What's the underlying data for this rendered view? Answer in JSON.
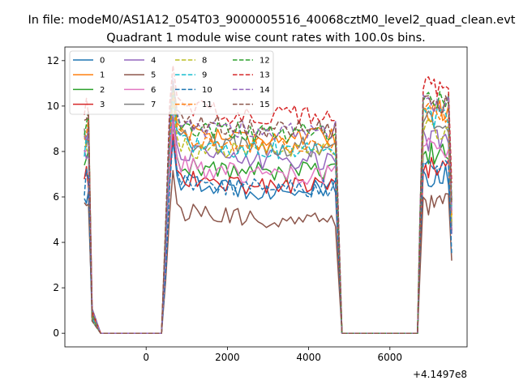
{
  "chart_data": {
    "type": "line",
    "suptitle": "In file: modeM0/AS1A12_054T03_9000005516_40068cztM0_level2_quad_clean.evt",
    "title": "Quadrant 1 module wise count rates with 100.0s bins.",
    "xlabel": "",
    "ylabel": "",
    "x_offset_label": "+4.1497e8",
    "xlim": [
      -2000,
      7900
    ],
    "ylim": [
      -0.6,
      12.6
    ],
    "xticks": [
      0,
      2000,
      4000,
      6000
    ],
    "yticks": [
      0,
      2,
      4,
      6,
      8,
      10,
      12
    ],
    "grid": false,
    "legend": {
      "placement": "upper-left",
      "columns": 4
    },
    "segments": [
      {
        "start": -1520,
        "end": -1120,
        "high_until": -1380
      },
      {
        "start": 380,
        "end": 4820,
        "high_until": 4720
      },
      {
        "start": 6680,
        "end": 7520,
        "high_until": 7520
      }
    ],
    "series": [
      {
        "name": "0",
        "color": "#1f77b4",
        "dash": false,
        "level": 6.3,
        "start_level": 6.0,
        "seg3_level": 7.0
      },
      {
        "name": "1",
        "color": "#ff7f0e",
        "dash": false,
        "level": 8.6,
        "start_level": 8.2,
        "seg3_level": 9.9
      },
      {
        "name": "2",
        "color": "#2ca02c",
        "dash": false,
        "level": 7.1,
        "start_level": 7.3,
        "seg3_level": 8.0
      },
      {
        "name": "3",
        "color": "#d62728",
        "dash": false,
        "level": 6.5,
        "start_level": 6.6,
        "seg3_level": 7.4
      },
      {
        "name": "4",
        "color": "#9467bd",
        "dash": false,
        "level": 7.6,
        "start_level": 7.8,
        "seg3_level": 8.6
      },
      {
        "name": "5",
        "color": "#8c564b",
        "dash": false,
        "level": 5.0,
        "start_level": 5.4,
        "seg3_level": 5.8
      },
      {
        "name": "6",
        "color": "#e377c2",
        "dash": false,
        "level": 7.0,
        "start_level": 7.5,
        "seg3_level": 8.2
      },
      {
        "name": "7",
        "color": "#7f7f7f",
        "dash": false,
        "level": 8.2,
        "start_level": 8.5,
        "seg3_level": 9.4
      },
      {
        "name": "8",
        "color": "#bcbd22",
        "dash": true,
        "level": 7.9,
        "start_level": 8.1,
        "seg3_level": 9.1
      },
      {
        "name": "9",
        "color": "#17becf",
        "dash": true,
        "level": 8.1,
        "start_level": 8.3,
        "seg3_level": 9.6
      },
      {
        "name": "10",
        "color": "#1f77b4",
        "dash": true,
        "level": 6.4,
        "start_level": 6.5,
        "seg3_level": 7.3
      },
      {
        "name": "11",
        "color": "#ff7f0e",
        "dash": true,
        "level": 8.3,
        "start_level": 8.9,
        "seg3_level": 9.8
      },
      {
        "name": "12",
        "color": "#2ca02c",
        "dash": true,
        "level": 8.8,
        "start_level": 9.0,
        "seg3_level": 10.3
      },
      {
        "name": "13",
        "color": "#d62728",
        "dash": true,
        "level": 9.6,
        "start_level": 9.8,
        "seg3_level": 11.0
      },
      {
        "name": "14",
        "color": "#9467bd",
        "dash": true,
        "level": 8.9,
        "start_level": 8.8,
        "seg3_level": 10.1
      },
      {
        "name": "15",
        "color": "#8c564b",
        "dash": true,
        "level": 9.0,
        "start_level": 9.4,
        "seg3_level": 10.2
      }
    ]
  }
}
